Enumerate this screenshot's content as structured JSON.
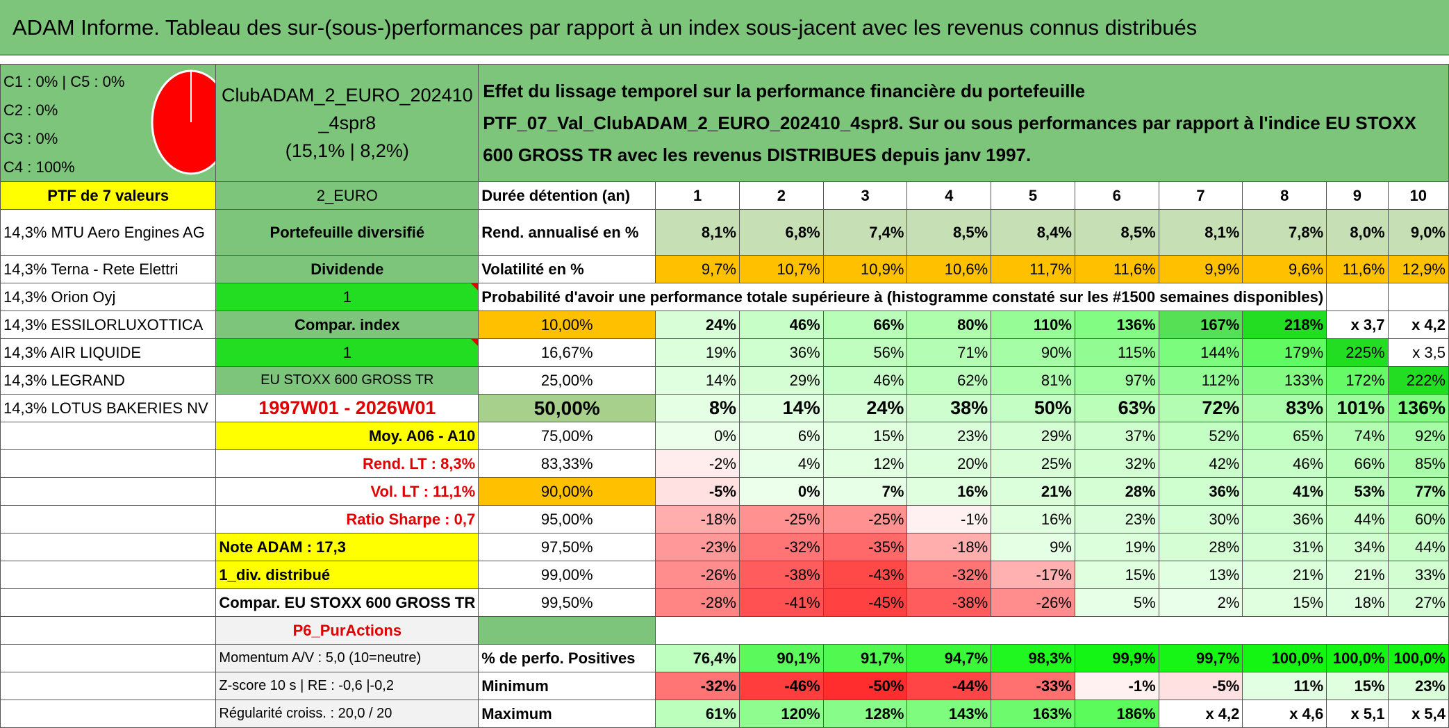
{
  "banner_title": "ADAM Informe. Tableau des sur-(sous-)performances par rapport à un index sous-jacent avec les revenus connus distribués",
  "legend": [
    "C1 : 0% | C5 : 0%",
    "C2 : 0%",
    "C3 : 0%",
    "C4 : 100%"
  ],
  "portfolio_name": "ClubADAM_2_EURO_202410_4spr8",
  "portfolio_stats": "(15,1% | 8,2%)",
  "description": "Effet du lissage temporel sur la performance financière du portefeuille PTF_07_Val_ClubADAM_2_EURO_202410_4spr8. Sur ou sous performances par rapport à l'indice EU STOXX 600 GROSS TR avec les revenus DISTRIBUES depuis janv 1997.",
  "ptf_label": "PTF de 7 valeurs",
  "currency": "2_EURO",
  "holding_label": "Durée détention (an)",
  "years": [
    "1",
    "2",
    "3",
    "4",
    "5",
    "6",
    "7",
    "8",
    "9",
    "10"
  ],
  "holdings": [
    "14,3% MTU Aero Engines AG",
    "14,3% Terna - Rete Elettri",
    "14,3% Orion Oyj",
    "14,3% ESSILORLUXOTTICA",
    "14,3% AIR LIQUIDE",
    "14,3% LEGRAND",
    "14,3% LOTUS BAKERIES NV"
  ],
  "info": [
    "Portefeuille diversifié",
    "Dividende",
    "1",
    "Compar. index",
    "1",
    "EU STOXX 600 GROSS TR",
    "1997W01 - 2026W01",
    "Moy. A06 - A10",
    "Rend. LT : 8,3%",
    "Vol. LT : 11,1%",
    "Ratio Sharpe : 0,7",
    "Note ADAM : 17,3",
    "1_div. distribué",
    "Compar. EU STOXX 600 GROSS TR",
    "P6_PurActions",
    "Momentum A/V : 5,0 (10=neutre)",
    "Z-score 10 s | RE : -0,6 |-0,2",
    "Régularité croiss. : 20,0 / 20"
  ],
  "rend_label": "Rend. annualisé en %",
  "rend": [
    "8,1%",
    "6,8%",
    "7,4%",
    "8,5%",
    "8,4%",
    "8,5%",
    "8,1%",
    "7,8%",
    "8,0%",
    "9,0%"
  ],
  "vol_label": "Volatilité en %",
  "vol": [
    "9,7%",
    "10,7%",
    "10,9%",
    "10,6%",
    "11,7%",
    "11,6%",
    "9,9%",
    "9,6%",
    "11,6%",
    "12,9%"
  ],
  "prob_label": "Probabilité d'avoir une performance totale supérieure à (histogramme constaté sur les #1500 semaines disponibles)",
  "quantiles": [
    "10,00%",
    "16,67%",
    "25,00%",
    "50,00%",
    "75,00%",
    "83,33%",
    "90,00%",
    "95,00%",
    "97,50%",
    "99,00%",
    "99,50%"
  ],
  "grid": [
    [
      "24%",
      "46%",
      "66%",
      "80%",
      "110%",
      "136%",
      "167%",
      "218%",
      "x 3,7",
      "x 4,2"
    ],
    [
      "19%",
      "36%",
      "56%",
      "71%",
      "90%",
      "115%",
      "144%",
      "179%",
      "225%",
      "x 3,5"
    ],
    [
      "14%",
      "29%",
      "46%",
      "62%",
      "81%",
      "97%",
      "112%",
      "133%",
      "172%",
      "222%"
    ],
    [
      "8%",
      "14%",
      "24%",
      "38%",
      "50%",
      "63%",
      "72%",
      "83%",
      "101%",
      "136%"
    ],
    [
      "0%",
      "6%",
      "15%",
      "23%",
      "29%",
      "37%",
      "52%",
      "65%",
      "74%",
      "92%"
    ],
    [
      "-2%",
      "4%",
      "12%",
      "20%",
      "25%",
      "32%",
      "42%",
      "46%",
      "66%",
      "85%"
    ],
    [
      "-5%",
      "0%",
      "7%",
      "16%",
      "21%",
      "28%",
      "36%",
      "41%",
      "53%",
      "77%"
    ],
    [
      "-18%",
      "-25%",
      "-25%",
      "-1%",
      "16%",
      "23%",
      "30%",
      "36%",
      "44%",
      "60%"
    ],
    [
      "-23%",
      "-32%",
      "-35%",
      "-18%",
      "9%",
      "19%",
      "28%",
      "31%",
      "34%",
      "44%"
    ],
    [
      "-26%",
      "-38%",
      "-43%",
      "-32%",
      "-17%",
      "15%",
      "13%",
      "21%",
      "21%",
      "33%"
    ],
    [
      "-28%",
      "-41%",
      "-45%",
      "-38%",
      "-26%",
      "5%",
      "2%",
      "15%",
      "18%",
      "27%"
    ]
  ],
  "pos_label": "% de perfo. Positives",
  "pos": [
    "76,4%",
    "90,1%",
    "91,7%",
    "94,7%",
    "98,3%",
    "99,9%",
    "99,7%",
    "100,0%",
    "100,0%",
    "100,0%"
  ],
  "min_label": "Minimum",
  "min": [
    "-32%",
    "-46%",
    "-50%",
    "-44%",
    "-33%",
    "-1%",
    "-5%",
    "11%",
    "15%",
    "23%"
  ],
  "max_label": "Maximum",
  "max": [
    "61%",
    "120%",
    "128%",
    "143%",
    "163%",
    "186%",
    "x 4,2",
    "x 4,6",
    "x 5,1",
    "x 5,4"
  ]
}
